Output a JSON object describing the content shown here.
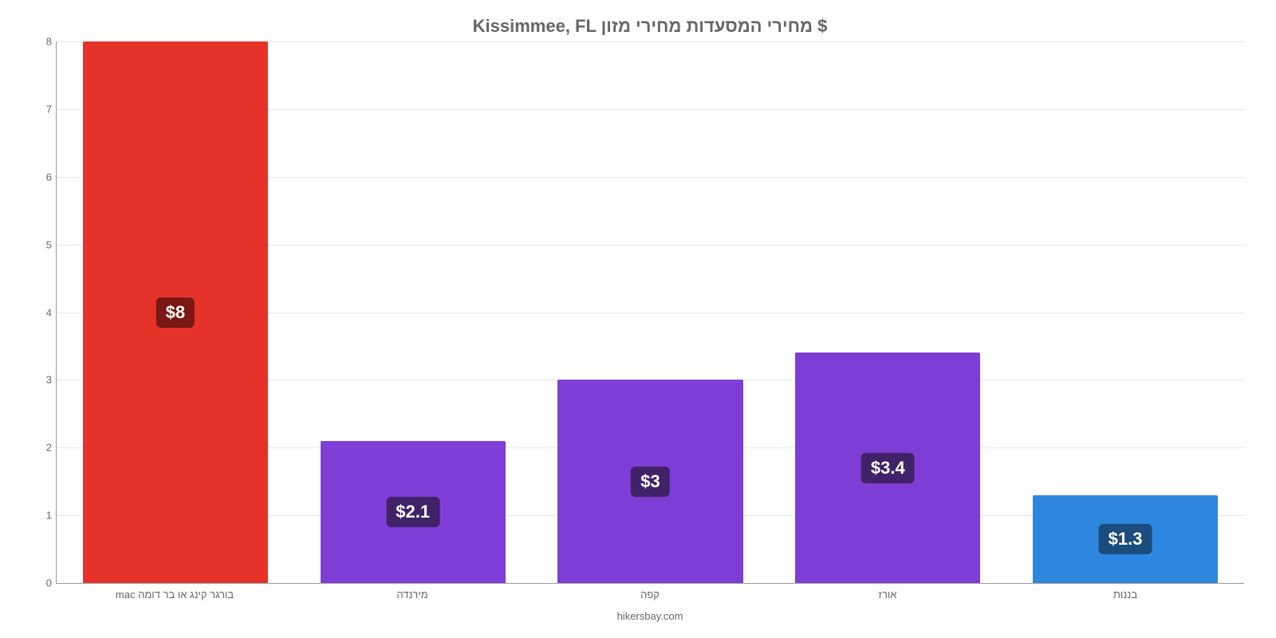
{
  "chart": {
    "type": "bar",
    "title": "Kissimmee, FL מחירי המסעדות מחירי מזון $",
    "title_fontsize": 22,
    "title_color": "#666666",
    "credit": "hikersbay.com",
    "background_color": "#ffffff",
    "grid_color": "#e6e6e6",
    "axis_color": "#999999",
    "label_color": "#666666",
    "label_fontsize": 13,
    "ylim": [
      0,
      8
    ],
    "ytick_step": 1,
    "yticks": [
      0,
      1,
      2,
      3,
      4,
      5,
      6,
      7,
      8
    ],
    "bar_width": 0.78,
    "categories": [
      "בורגר קינג או בר דומה mac",
      "מירנדה",
      "קפה",
      "אורז",
      "בננות"
    ],
    "values": [
      8,
      2.1,
      3,
      3.4,
      1.3
    ],
    "value_labels": [
      "$8",
      "$2.1",
      "$3",
      "$3.4",
      "$1.3"
    ],
    "bar_colors": [
      "#e6332a",
      "#7e3ed6",
      "#7e3ed6",
      "#7e3ed6",
      "#2e86de"
    ],
    "badge_colors": [
      "#7b1714",
      "#402269",
      "#402269",
      "#402269",
      "#1a4d7d"
    ],
    "badge_fontsize": 22,
    "badge_text_color": "#ffffff"
  }
}
